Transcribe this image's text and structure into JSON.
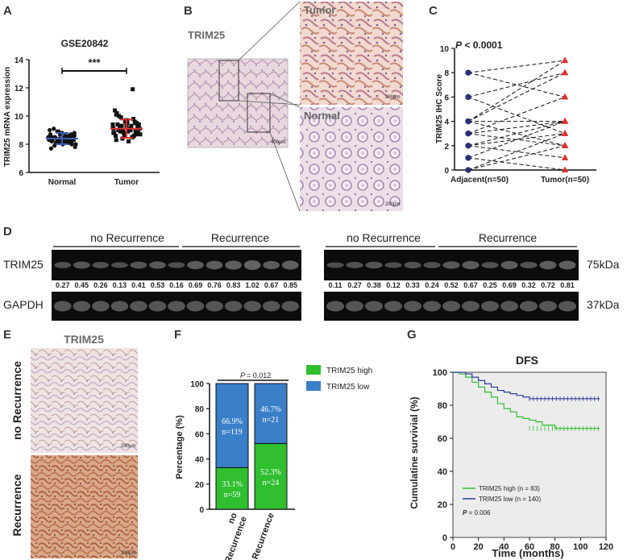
{
  "panels": {
    "A": {
      "letter": "A",
      "title": "GSE20842",
      "ylabel": "TRIM25 mRNA expression",
      "significance": "***"
    },
    "B": {
      "letter": "B",
      "label": "TRIM25",
      "tumor": "Tumor",
      "normal": "Normal",
      "scale_low": "400μm",
      "scale_high": "200μm"
    },
    "C": {
      "letter": "C",
      "pvalue_p": "P",
      "pvalue_rest": " < 0.0001",
      "ylabel": "TRIM25 IHC Score"
    },
    "D": {
      "letter": "D",
      "no_recurrence": "no Recurrence",
      "recurrence": "Recurrence",
      "trim25": "TRIM25",
      "gapdh": "GAPDH",
      "kda75": "75kDa",
      "kda37": "37kDa",
      "left_values": [
        "0.27",
        "0.45",
        "0.26",
        "0.13",
        "0.41",
        "0.53",
        "0.16",
        "0.69",
        "0.76",
        "0.83",
        "1.02",
        "0.67",
        "0.85"
      ],
      "right_values": [
        "0.11",
        "0.27",
        "0.38",
        "0.12",
        "0.33",
        "0.24",
        "0.52",
        "0.67",
        "0.25",
        "0.69",
        "0.32",
        "0.72",
        "0.81"
      ]
    },
    "E": {
      "letter": "E",
      "label": "TRIM25",
      "no_recurrence": "no Recurrence",
      "recurrence": "Recurrence",
      "scale": "200μm"
    },
    "F": {
      "letter": "F",
      "pvalue": "= 0.012",
      "pvalue_p": "P",
      "legend_high": "TRIM25 high",
      "legend_low": "TRIM25 low",
      "ylabel": "Percentage (%)"
    },
    "G": {
      "letter": "G",
      "title": "DFS",
      "ylabel": "Cumulatine survivial (%)",
      "xlabel": "Time (months)",
      "legend_high": "TRIM25 high (n = 83)",
      "legend_low": "TRIM25 low (n = 140)",
      "pvalue_p": "P",
      "pvalue_rest": " = 0.006"
    }
  },
  "colors": {
    "blue": "#3a5fb8",
    "red": "#e03030",
    "green": "#2fbf2f",
    "bar_blue": "#3a7fc8",
    "bar_green": "#2fbf2f",
    "km_high": "#2fbf2f",
    "km_low": "#2a3c9a",
    "km_bg": "#ececec"
  },
  "chart_data": [
    {
      "type": "scatter",
      "title": "GSE20842",
      "ylabel": "TRIM25 mRNA expression",
      "categories": [
        "Normal",
        "Tumor"
      ],
      "ylim": [
        6,
        14
      ],
      "yticks": [
        6,
        8,
        10,
        12,
        14
      ],
      "series": [
        {
          "name": "Normal",
          "mean": 8.4,
          "sd": 0.4,
          "values": [
            8.5,
            8.3,
            8.7,
            8.1,
            8.6,
            8.4,
            8.2,
            8.9,
            7.9,
            8.5,
            8.3,
            8.8,
            8.0,
            8.6,
            8.4,
            8.2,
            8.7,
            8.1,
            8.5,
            8.3,
            9.0,
            7.8,
            8.6,
            8.4,
            8.2,
            8.5,
            8.3,
            8.9,
            8.1,
            8.4,
            8.7,
            8.0,
            8.6,
            8.3,
            8.5,
            8.2,
            8.8,
            8.4,
            8.1,
            9.1,
            7.7,
            8.5,
            8.3,
            8.6,
            8.2,
            8.4,
            8.0,
            8.7,
            8.3,
            8.5,
            8.2,
            8.4,
            8.6,
            8.1
          ]
        },
        {
          "name": "Tumor",
          "mean": 9.1,
          "sd": 0.65,
          "values": [
            9.2,
            8.8,
            9.5,
            8.5,
            9.0,
            9.7,
            8.6,
            9.3,
            10.0,
            8.3,
            9.1,
            9.4,
            8.7,
            9.8,
            9.0,
            8.9,
            9.6,
            8.4,
            9.2,
            10.2,
            8.8,
            9.1,
            9.5,
            8.6,
            9.3,
            8.2,
            9.7,
            9.0,
            8.9,
            9.4,
            10.4,
            8.7,
            9.2,
            9.6,
            8.5,
            9.1,
            9.3,
            8.8,
            9.9,
            9.0,
            8.6,
            9.4,
            9.2,
            8.9,
            11.9,
            9.1,
            9.5,
            8.7,
            9.3,
            9.0,
            10.1,
            8.8
          ]
        }
      ],
      "annotation": "***"
    },
    {
      "type": "line",
      "ylabel": "TRIM25 IHC Score",
      "categories": [
        "Adjacent(n=50)",
        "Tumor(n=50)"
      ],
      "ylim": [
        0,
        10
      ],
      "yticks": [
        0,
        2,
        4,
        6,
        8,
        10
      ],
      "annotation": "P < 0.0001",
      "pairs": [
        [
          8,
          6
        ],
        [
          8,
          9
        ],
        [
          6,
          8
        ],
        [
          6,
          3
        ],
        [
          4,
          8
        ],
        [
          4,
          4
        ],
        [
          4,
          2
        ],
        [
          3,
          6
        ],
        [
          3,
          4
        ],
        [
          3,
          2
        ],
        [
          2,
          3
        ],
        [
          2,
          1
        ],
        [
          1,
          4
        ],
        [
          1,
          0
        ],
        [
          0,
          3
        ],
        [
          0,
          2
        ],
        [
          4,
          9
        ],
        [
          2,
          4
        ]
      ]
    },
    {
      "type": "bar",
      "ylabel": "Percentage (%)",
      "categories": [
        "no Recurrence",
        "Recurrence"
      ],
      "ylim": [
        0,
        100
      ],
      "yticks": [
        0,
        20,
        40,
        60,
        80,
        100
      ],
      "annotation": "P = 0.012",
      "series": [
        {
          "name": "TRIM25 high",
          "values": [
            33.1,
            52.3
          ],
          "labels": [
            "33.1%",
            "52.3%"
          ],
          "counts": [
            "n=59",
            "n=24"
          ]
        },
        {
          "name": "TRIM25 low",
          "values": [
            66.9,
            46.7
          ],
          "labels": [
            "66.9%",
            "46.7%"
          ],
          "counts": [
            "n=119",
            "n=21"
          ]
        }
      ]
    },
    {
      "type": "line",
      "title": "DFS",
      "xlabel": "Time (months)",
      "ylabel": "Cumulatine survivial (%)",
      "xlim": [
        0,
        120
      ],
      "ylim": [
        0,
        100
      ],
      "xticks": [
        0,
        20,
        40,
        60,
        80,
        100,
        120
      ],
      "yticks": [
        0,
        20,
        40,
        60,
        80,
        100
      ],
      "annotation": "P = 0.006",
      "series": [
        {
          "name": "TRIM25 high (n = 83)",
          "x": [
            0,
            5,
            10,
            15,
            20,
            25,
            30,
            35,
            40,
            45,
            50,
            55,
            60,
            65,
            70,
            80,
            90,
            100,
            115
          ],
          "y": [
            100,
            99,
            97,
            94,
            91,
            88,
            85,
            81,
            78,
            76,
            73,
            72,
            71,
            70,
            68,
            66,
            66,
            66,
            66
          ]
        },
        {
          "name": "TRIM25 low (n = 140)",
          "x": [
            0,
            5,
            10,
            15,
            20,
            25,
            30,
            35,
            40,
            45,
            50,
            55,
            60,
            70,
            80,
            90,
            100,
            115
          ],
          "y": [
            100,
            100,
            99,
            97,
            95,
            93,
            91,
            89,
            88,
            87,
            86,
            85,
            84,
            84,
            84,
            84,
            84,
            84
          ]
        }
      ]
    }
  ]
}
